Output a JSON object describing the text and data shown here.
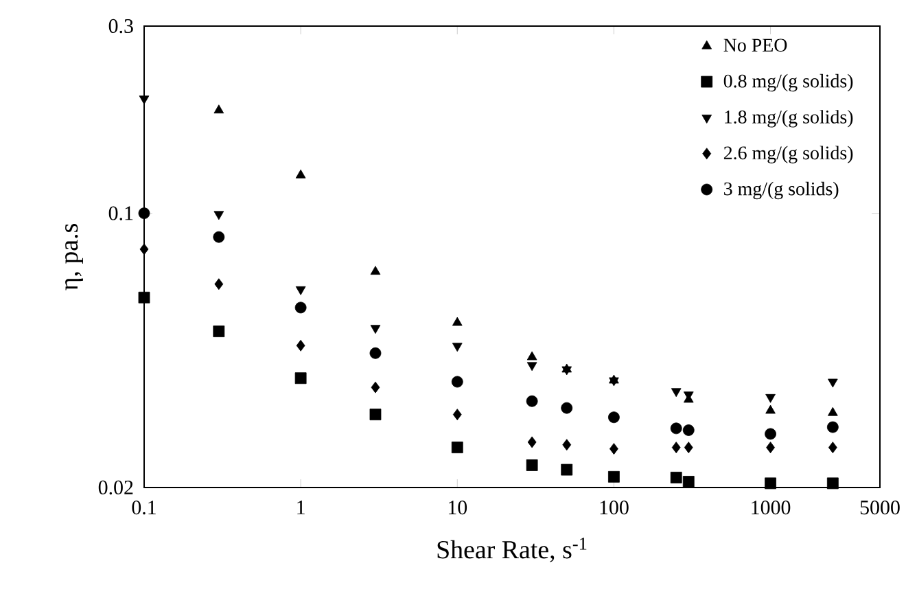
{
  "chart_data": {
    "type": "scatter",
    "xlabel": "Shear Rate, s$^{-1}$",
    "ylabel": "η, pa.s",
    "log": "xy",
    "xlim": [
      0.1,
      5000
    ],
    "ylim": [
      0.02,
      0.3
    ],
    "xticks": [
      0.1,
      1,
      10,
      100,
      1000,
      5000
    ],
    "yticks": [
      0.02,
      0.1,
      0.3
    ],
    "legend": "top right",
    "grid": false,
    "x": [
      0.1,
      0.3,
      1,
      3,
      10,
      30,
      50,
      100,
      250,
      300,
      1000,
      2500
    ],
    "series": [
      {
        "name": "No PEO",
        "color": "#000000",
        "marker": "triangle",
        "values": [
          null,
          0.183,
          0.125,
          0.071,
          0.0526,
          0.043,
          0.04,
          0.0375,
          null,
          0.0335,
          0.0314,
          0.031
        ]
      },
      {
        "name": "0.8 mg/(g solids)",
        "color": "#000000",
        "marker": "square",
        "values": [
          0.061,
          0.05,
          0.038,
          0.0307,
          0.0253,
          0.0228,
          0.0222,
          0.0213,
          0.0212,
          0.0207,
          0.0205,
          0.0205
        ]
      },
      {
        "name": "1.8 mg/(g solids)",
        "color": "#000000",
        "marker": "triangle-down",
        "values": [
          0.196,
          0.0995,
          0.064,
          0.051,
          0.0459,
          0.041,
          0.04,
          0.0375,
          0.0352,
          0.0345,
          0.034,
          0.0372
        ]
      },
      {
        "name": "2.6 mg/(g solids)",
        "color": "#000000",
        "marker": "diamond",
        "values": [
          0.081,
          0.066,
          0.046,
          0.036,
          0.0307,
          0.0261,
          0.0257,
          0.0251,
          0.0253,
          0.0253,
          0.0253,
          0.0253
        ]
      },
      {
        "name": "3 mg/(g solids)",
        "color": "#000000",
        "marker": "circle",
        "values": [
          0.1,
          0.087,
          0.0575,
          0.044,
          0.0372,
          0.0332,
          0.0319,
          0.0302,
          0.0283,
          0.028,
          0.0274,
          0.0285
        ]
      }
    ]
  }
}
